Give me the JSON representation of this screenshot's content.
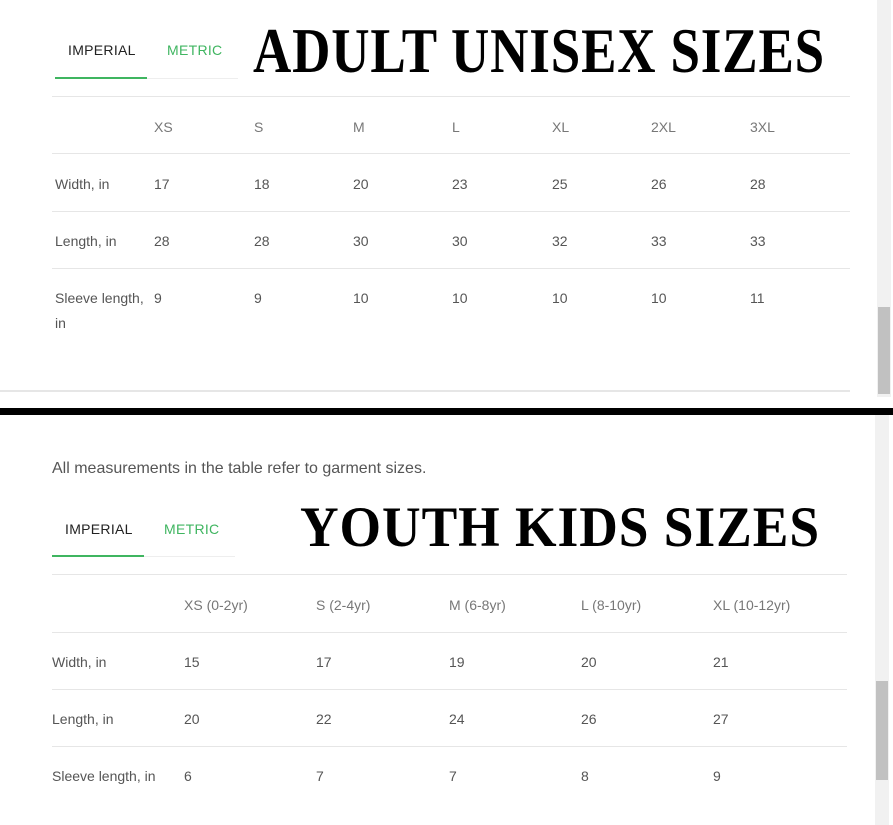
{
  "adult": {
    "title": "ADULT UNISEX SIZES",
    "tabs": [
      {
        "label": "IMPERIAL",
        "active": true
      },
      {
        "label": "METRIC",
        "active": false
      }
    ],
    "columns": [
      "XS",
      "S",
      "M",
      "L",
      "XL",
      "2XL",
      "3XL"
    ],
    "rows": [
      {
        "label": "Width, in",
        "values": [
          "17",
          "18",
          "20",
          "23",
          "25",
          "26",
          "28"
        ]
      },
      {
        "label": "Length, in",
        "values": [
          "28",
          "28",
          "30",
          "30",
          "32",
          "33",
          "33"
        ]
      },
      {
        "label": "Sleeve length, in",
        "values": [
          "9",
          "9",
          "10",
          "10",
          "10",
          "10",
          "11"
        ]
      }
    ]
  },
  "youth": {
    "note": "All measurements in the table refer to garment sizes.",
    "title": "YOUTH KIDS SIZES",
    "tabs": [
      {
        "label": "IMPERIAL",
        "active": true
      },
      {
        "label": "METRIC",
        "active": false
      }
    ],
    "columns": [
      "XS (0-2yr)",
      "S (2-4yr)",
      "M (6-8yr)",
      "L (8-10yr)",
      "XL (10-12yr)"
    ],
    "rows": [
      {
        "label": "Width, in",
        "values": [
          "15",
          "17",
          "19",
          "20",
          "21"
        ]
      },
      {
        "label": "Length, in",
        "values": [
          "20",
          "22",
          "24",
          "26",
          "27"
        ]
      },
      {
        "label": "Sleeve length, in",
        "values": [
          "6",
          "7",
          "7",
          "8",
          "9"
        ]
      }
    ]
  },
  "colors": {
    "accent": "#3fb560",
    "divider": "#000000"
  }
}
